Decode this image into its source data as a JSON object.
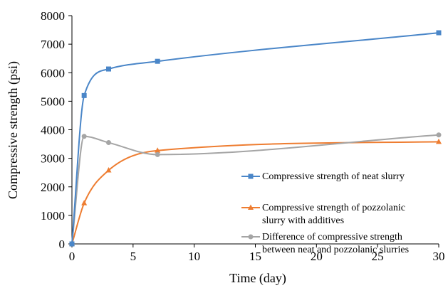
{
  "chart_data": {
    "type": "line",
    "xlabel": "Time (day)",
    "ylabel": "Compressive strength (psi)",
    "xlim": [
      0,
      30
    ],
    "ylim": [
      0,
      8000
    ],
    "xticks": [
      "0",
      "5",
      "10",
      "15",
      "20",
      "25",
      "30"
    ],
    "yticks": [
      "0",
      "1000",
      "2000",
      "3000",
      "4000",
      "5000",
      "6000",
      "7000",
      "8000"
    ],
    "grid": false,
    "legend_position": "right",
    "smooth": true,
    "series": [
      {
        "name": "Compressive strength of neat slurry",
        "name_lines": [
          "Compressive strength of neat slurry"
        ],
        "color": "#4a86c8",
        "marker": "square",
        "x": [
          0,
          1,
          3,
          7,
          30
        ],
        "y": [
          0,
          5200,
          6130,
          6400,
          7400
        ]
      },
      {
        "name": "Compressive strength of pozzolanic slurry with additives",
        "name_lines": [
          "Compressive strength of pozzolanic",
          "slurry with additives"
        ],
        "color": "#ee7d31",
        "marker": "triangle",
        "x": [
          0,
          1,
          3,
          7,
          30
        ],
        "y": [
          0,
          1430,
          2580,
          3270,
          3580
        ]
      },
      {
        "name": "Difference of compressive strength between neat and pozzolanic slurries",
        "name_lines": [
          "Difference of compressive strength",
          "between neat and pozzolanic slurries"
        ],
        "color": "#a5a5a5",
        "marker": "circle",
        "x": [
          0,
          1,
          3,
          7,
          30
        ],
        "y": [
          0,
          3770,
          3550,
          3130,
          3820
        ]
      }
    ]
  }
}
